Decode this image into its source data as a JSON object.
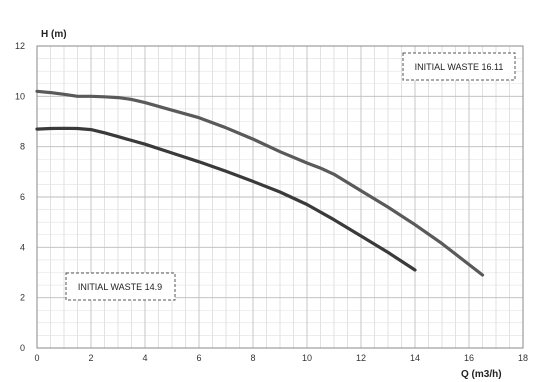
{
  "chart_data": {
    "type": "line",
    "xlabel": "Q (m3/h)",
    "ylabel": "H (m)",
    "xlim": [
      0,
      18
    ],
    "ylim": [
      0,
      12
    ],
    "x_ticks": [
      0,
      2,
      4,
      6,
      8,
      10,
      12,
      14,
      16,
      18
    ],
    "y_ticks": [
      0,
      2,
      4,
      6,
      8,
      10,
      12
    ],
    "grid": true,
    "series": [
      {
        "name": "INITIAL WASTE 16.11",
        "color": "#5a5a5a",
        "x": [
          0,
          0.5,
          1,
          1.5,
          2,
          2.5,
          3,
          3.5,
          4,
          5,
          6,
          7,
          8,
          9,
          10,
          10.5,
          11,
          12,
          13,
          14,
          15,
          16.5
        ],
        "y": [
          10.2,
          10.15,
          10.08,
          10.0,
          10.0,
          9.98,
          9.95,
          9.88,
          9.75,
          9.45,
          9.15,
          8.75,
          8.3,
          7.8,
          7.35,
          7.15,
          6.9,
          6.25,
          5.6,
          4.9,
          4.15,
          2.9
        ]
      },
      {
        "name": "INITIAL WASTE 14.9",
        "color": "#3a3a3a",
        "x": [
          0,
          0.5,
          1,
          1.5,
          2,
          2.5,
          3,
          4,
          5,
          6,
          7,
          8,
          9,
          10,
          11,
          12,
          13,
          14
        ],
        "y": [
          8.7,
          8.72,
          8.73,
          8.72,
          8.68,
          8.55,
          8.4,
          8.1,
          7.75,
          7.4,
          7.02,
          6.62,
          6.2,
          5.7,
          5.1,
          4.45,
          3.8,
          3.1
        ]
      }
    ]
  }
}
